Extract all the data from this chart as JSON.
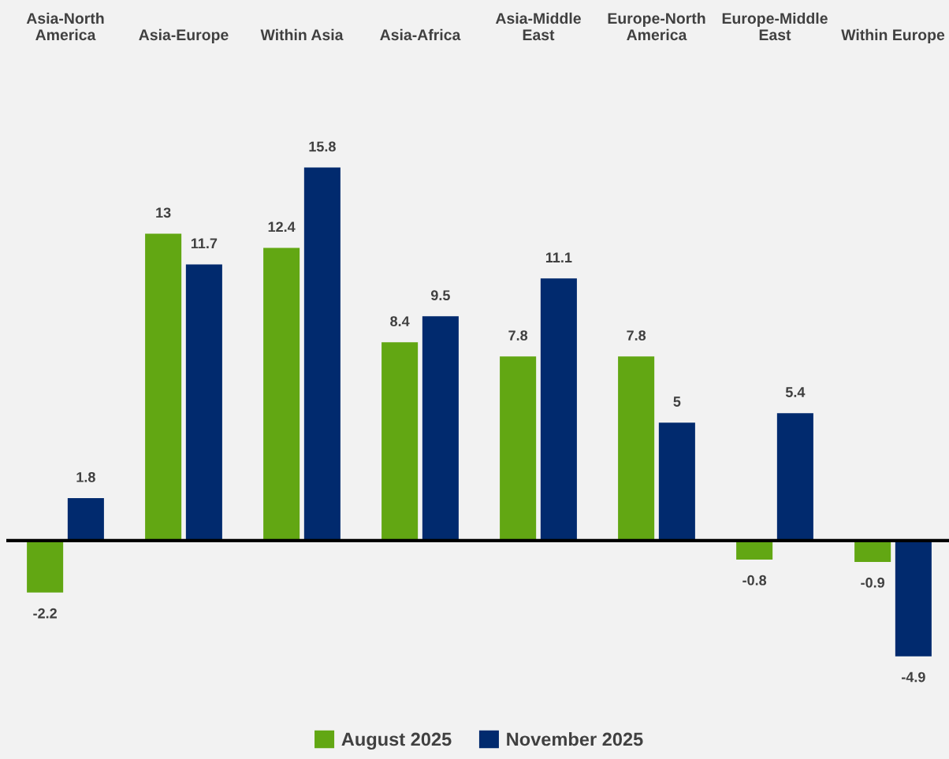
{
  "chart_data": {
    "type": "bar",
    "categories": [
      "Asia-North\nAmerica",
      "Asia-Europe",
      "Within Asia",
      "Asia-Africa",
      "Asia-Middle\nEast",
      "Europe-North\nAmerica",
      "Europe-Middle\nEast",
      "Within Europe"
    ],
    "series": [
      {
        "name": "August 2025",
        "color": "#62a713",
        "values": [
          -2.2,
          13,
          12.4,
          8.4,
          7.8,
          7.8,
          -0.8,
          -0.9
        ]
      },
      {
        "name": "November 2025",
        "color": "#012a6e",
        "values": [
          1.8,
          11.7,
          15.8,
          9.5,
          11.1,
          5,
          5.4,
          -4.9
        ]
      }
    ],
    "data_labels": true,
    "legend": "bottom",
    "grid": false,
    "tick_labels": "x"
  }
}
